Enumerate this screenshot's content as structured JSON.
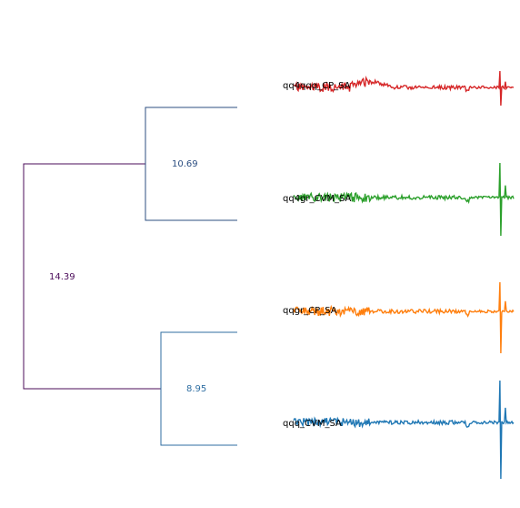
{
  "colors": {
    "root": "#4b0c5a",
    "upper_cluster": "#2d4f82",
    "lower_cluster": "#2f6ea2",
    "trace_red": "#d62728",
    "trace_green": "#2ca02c",
    "trace_orange": "#ff7f0e",
    "trace_blue": "#1f77b4"
  },
  "dendrogram": {
    "root_distance": "14.39",
    "upper_distance": "10.69",
    "lower_distance": "8.95"
  },
  "leaves": [
    {
      "label": "qq4qqq_CP_SA",
      "color": "#d62728",
      "seed": 11,
      "spike_up": 18,
      "spike_down": 20
    },
    {
      "label": "qq4gr_CVM_SA",
      "color": "#2ca02c",
      "seed": 23,
      "spike_up": 38,
      "spike_down": 42
    },
    {
      "label": "qqgr_CP_SA",
      "color": "#ff7f0e",
      "seed": 37,
      "spike_up": 32,
      "spike_down": 46
    },
    {
      "label": "qqq_CVM_SA",
      "color": "#1f77b4",
      "seed": 53,
      "spike_up": 46,
      "spike_down": 62
    }
  ]
}
